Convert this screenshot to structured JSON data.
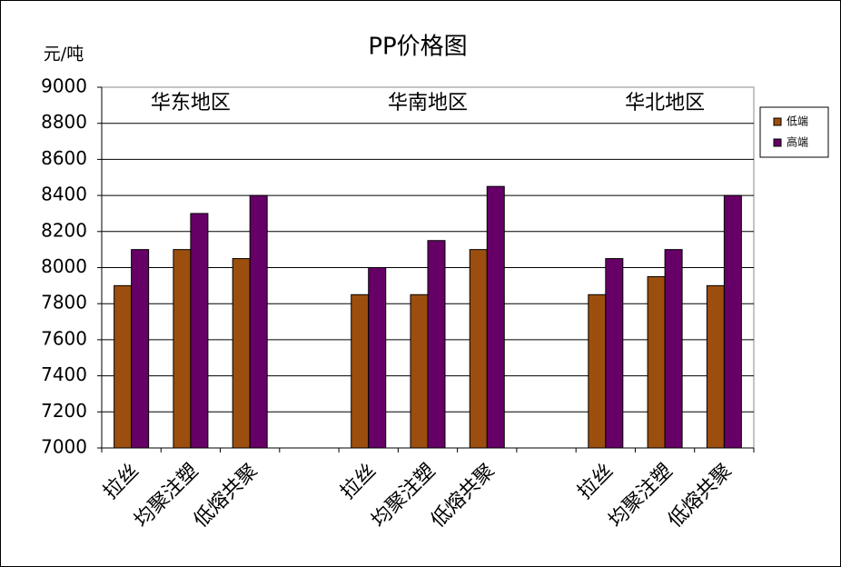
{
  "chart_data": {
    "type": "bar",
    "title": "PP价格图",
    "y_label": "元/吨",
    "annotations": [
      "华东地区",
      "华南地区",
      "华北地区"
    ],
    "categories": [
      "拉丝",
      "均聚注塑",
      "低熔共聚",
      null,
      "拉丝",
      "均聚注塑",
      "低熔共聚",
      null,
      "拉丝",
      "均聚注塑",
      "低熔共聚"
    ],
    "series": [
      {
        "name": "低端",
        "color": "#9c4e0e",
        "values": [
          7900,
          8100,
          8050,
          null,
          7850,
          7850,
          8100,
          null,
          7850,
          7950,
          7900
        ]
      },
      {
        "name": "高端",
        "color": "#660066",
        "values": [
          8100,
          8300,
          8400,
          null,
          8000,
          8150,
          8450,
          null,
          8050,
          8100,
          8400
        ]
      }
    ],
    "ylim": [
      7000,
      9000
    ],
    "yticks": [
      7000,
      7200,
      7400,
      7600,
      7800,
      8000,
      8200,
      8400,
      8600,
      8800,
      9000
    ],
    "grid": true,
    "legend": "right"
  }
}
